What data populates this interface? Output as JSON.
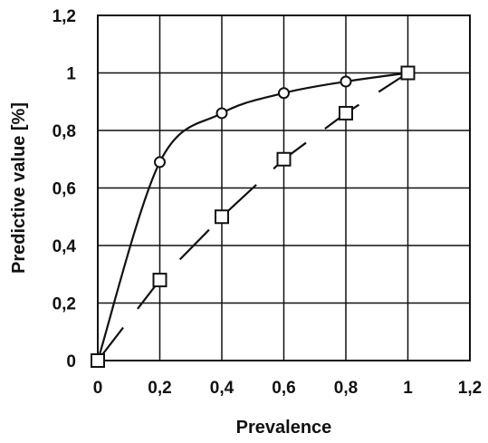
{
  "chart_data": {
    "type": "line",
    "title": "",
    "xlabel": "Prevalence",
    "ylabel": "Predictive value [%]",
    "xlim": [
      0,
      1.2
    ],
    "ylim": [
      0,
      1.2
    ],
    "x_ticks": [
      "0",
      "0,2",
      "0,4",
      "0,6",
      "0,8",
      "1",
      "1,2"
    ],
    "y_ticks": [
      "0",
      "0,2",
      "0,4",
      "0,6",
      "0,8",
      "1",
      "1,2"
    ],
    "grid": true,
    "legend": "none",
    "series": [
      {
        "marker": "circle",
        "line_style": "solid",
        "color": "#111111",
        "x": [
          0,
          0.2,
          0.4,
          0.6,
          0.8,
          1.0
        ],
        "y": [
          0,
          0.69,
          0.86,
          0.93,
          0.97,
          1.0
        ]
      },
      {
        "marker": "square",
        "line_style": "dashed",
        "color": "#111111",
        "x": [
          0,
          0.2,
          0.4,
          0.6,
          0.8,
          1.0
        ],
        "y": [
          0,
          0.28,
          0.5,
          0.7,
          0.86,
          1.0
        ]
      }
    ]
  }
}
